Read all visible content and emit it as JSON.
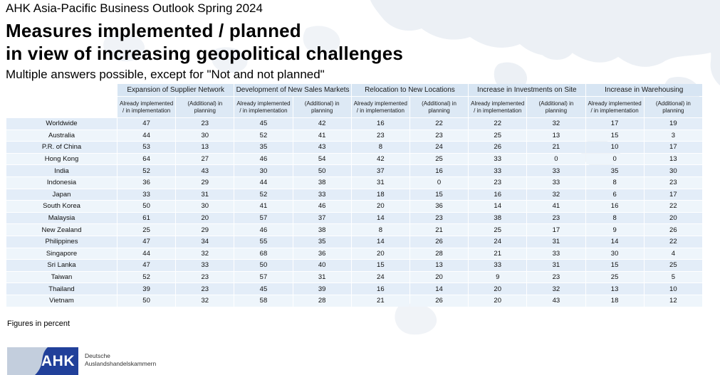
{
  "header": {
    "eyebrow": "AHK Asia-Pacific Business Outlook Spring 2024",
    "title_line1": "Measures implemented / planned",
    "title_line2": "in view of increasing geopolitical challenges",
    "subtitle": "Multiple answers possible, except for \"Not and not planned\""
  },
  "chart_data": {
    "type": "table",
    "title": "Measures implemented / planned in view of increasing geopolitical challenges",
    "unit": "percent",
    "column_groups": [
      "Expansion of Supplier Network",
      "Development of New Sales Markets",
      "Relocation to New Locations",
      "Increase in Investments on Site",
      "Increase in Warehousing"
    ],
    "sub_header_implemented": "Already implemented / in implementation",
    "sub_header_planned": "(Additional) in planning",
    "rows": [
      {
        "label": "Worldwide",
        "values": [
          47,
          23,
          45,
          42,
          16,
          22,
          22,
          32,
          17,
          19
        ]
      },
      {
        "label": "Australia",
        "values": [
          44,
          30,
          52,
          41,
          23,
          23,
          25,
          13,
          15,
          3
        ]
      },
      {
        "label": "P.R. of China",
        "values": [
          53,
          13,
          35,
          43,
          8,
          24,
          26,
          21,
          10,
          17
        ]
      },
      {
        "label": "Hong Kong",
        "values": [
          64,
          27,
          46,
          54,
          42,
          25,
          33,
          0,
          0,
          13
        ]
      },
      {
        "label": "India",
        "values": [
          52,
          43,
          30,
          50,
          37,
          16,
          33,
          33,
          35,
          30
        ]
      },
      {
        "label": "Indonesia",
        "values": [
          36,
          29,
          44,
          38,
          31,
          0,
          23,
          33,
          8,
          23
        ]
      },
      {
        "label": "Japan",
        "values": [
          33,
          31,
          52,
          33,
          18,
          15,
          16,
          32,
          6,
          17
        ]
      },
      {
        "label": "South Korea",
        "values": [
          50,
          30,
          41,
          46,
          20,
          36,
          14,
          41,
          16,
          22
        ]
      },
      {
        "label": "Malaysia",
        "values": [
          61,
          20,
          57,
          37,
          14,
          23,
          38,
          23,
          8,
          20
        ]
      },
      {
        "label": "New Zealand",
        "values": [
          25,
          29,
          46,
          38,
          8,
          21,
          25,
          17,
          9,
          26
        ]
      },
      {
        "label": "Philippines",
        "values": [
          47,
          34,
          55,
          35,
          14,
          26,
          24,
          31,
          14,
          22
        ]
      },
      {
        "label": "Singapore",
        "values": [
          44,
          32,
          68,
          36,
          20,
          28,
          21,
          33,
          30,
          4
        ]
      },
      {
        "label": "Sri Lanka",
        "values": [
          47,
          33,
          50,
          40,
          15,
          13,
          33,
          31,
          15,
          25
        ]
      },
      {
        "label": "Taiwan",
        "values": [
          52,
          23,
          57,
          31,
          24,
          20,
          9,
          23,
          25,
          5
        ]
      },
      {
        "label": "Thailand",
        "values": [
          39,
          23,
          45,
          39,
          16,
          14,
          20,
          32,
          13,
          10
        ]
      },
      {
        "label": "Vietnam",
        "values": [
          50,
          32,
          58,
          28,
          21,
          26,
          20,
          43,
          18,
          12
        ]
      }
    ]
  },
  "footer": {
    "note": "Figures in percent"
  },
  "logo": {
    "abbr": "AHK",
    "org_line1": "Deutsche",
    "org_line2": "Auslandshandelskammern"
  },
  "colors": {
    "logo_blue": "#21409a",
    "logo_swoosh": "#c3cedd",
    "table_header_bg": "#d7e5f3",
    "table_subheader_bg": "#dde9f5",
    "row_stripe_dark": "#e3edf8",
    "row_stripe_light": "#eef5fb"
  }
}
